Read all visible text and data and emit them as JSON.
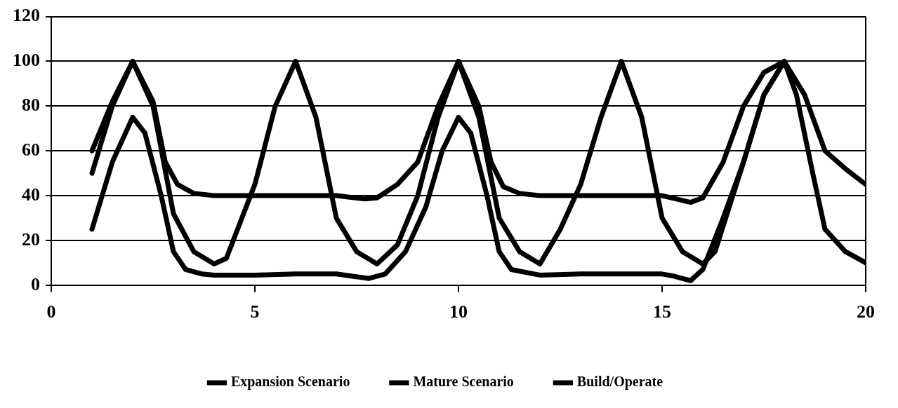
{
  "chart_data": {
    "type": "line",
    "xlim": [
      0,
      20
    ],
    "xticks": [
      0,
      5,
      10,
      15,
      20
    ],
    "ylim": [
      0,
      120
    ],
    "yticks": [
      0,
      20,
      40,
      60,
      80,
      100,
      120
    ],
    "grid": "y",
    "legend": "bottom",
    "marker": "none",
    "line_style": "solid",
    "series": [
      {
        "name": "Expansion Scenario",
        "color": "#000000",
        "x": [
          1,
          1.5,
          2,
          2.5,
          2.8,
          3.1,
          3.5,
          4,
          5,
          6,
          7,
          7.7,
          8,
          8.5,
          9,
          9.5,
          10,
          10.5,
          10.8,
          11.1,
          11.5,
          12,
          13,
          14,
          15,
          15.7,
          16,
          16.5,
          17,
          17.5,
          18,
          18.5,
          19,
          19.5,
          20
        ],
        "values": [
          60,
          82,
          100,
          82,
          55,
          45,
          41,
          40,
          40,
          40,
          40,
          38.5,
          39,
          45,
          55,
          80,
          100,
          80,
          55,
          44,
          41,
          40,
          40,
          40,
          40,
          37,
          39,
          55,
          80,
          95,
          100,
          85,
          60,
          52,
          45
        ]
      },
      {
        "name": "Mature Scenario",
        "color": "#000000",
        "x": [
          1,
          1.5,
          2,
          2.3,
          2.7,
          3,
          3.3,
          3.7,
          4,
          5,
          6,
          7,
          7.8,
          8.2,
          8.7,
          9.2,
          9.6,
          10,
          10.3,
          10.7,
          11,
          11.3,
          12,
          13,
          14,
          15,
          15.3,
          15.7,
          16,
          16.5,
          17,
          17.5,
          18,
          18.3,
          18.7,
          19,
          19.5,
          20
        ],
        "values": [
          25,
          55,
          75,
          68,
          40,
          15,
          7,
          5,
          4.5,
          4.5,
          5,
          5,
          3,
          5,
          15,
          35,
          60,
          75,
          68,
          40,
          15,
          7,
          4.5,
          5,
          5,
          5,
          4,
          2,
          7,
          30,
          55,
          85,
          100,
          85,
          50,
          25,
          15,
          10
        ]
      },
      {
        "name": "Build/Operate",
        "color": "#000000",
        "x": [
          1,
          1.5,
          2,
          2.5,
          3,
          3.5,
          4,
          4.3,
          5,
          5.5,
          6,
          6.5,
          7,
          7.5,
          8,
          8.5,
          9,
          9.5,
          10,
          10.5,
          11,
          11.5,
          12,
          12.5,
          13,
          13.5,
          14,
          14.5,
          15,
          15.5,
          16,
          16.3,
          17,
          17.5,
          18
        ],
        "values": [
          50,
          80,
          100,
          80,
          32,
          15,
          9.5,
          12,
          45,
          80,
          100,
          75,
          30,
          15,
          9.5,
          18,
          40,
          75,
          100,
          75,
          30,
          15,
          9.5,
          25,
          45,
          75,
          100,
          75,
          30,
          15,
          9.5,
          15,
          55,
          85,
          100
        ]
      }
    ]
  }
}
